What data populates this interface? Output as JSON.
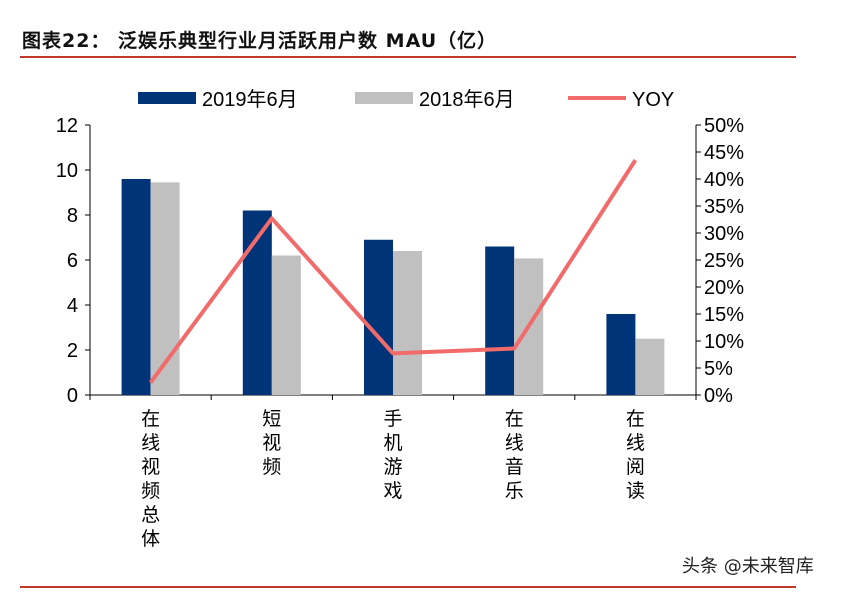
{
  "title": "图表22：   泛娱乐典型行业月活跃用户数 MAU（亿）",
  "watermark": "头条 @未来智库",
  "colors": {
    "s2019": "#003478",
    "s2018": "#c0c0c0",
    "yoy": "#f26b6b",
    "rule": "#c0392b"
  },
  "chart_data": {
    "type": "bar",
    "categories": [
      "在线视频总体",
      "短视频",
      "手机游戏",
      "在线音乐",
      "在线阅读"
    ],
    "series": [
      {
        "name": "2019年6月",
        "type": "bar",
        "axis": "left",
        "values": [
          9.6,
          8.2,
          6.9,
          6.6,
          3.6
        ]
      },
      {
        "name": "2018年6月",
        "type": "bar",
        "axis": "left",
        "values": [
          9.45,
          6.2,
          6.4,
          6.07,
          2.5
        ]
      },
      {
        "name": "YOY",
        "type": "line",
        "axis": "right",
        "values": [
          2.3,
          32.7,
          7.7,
          8.6,
          43.5
        ]
      }
    ],
    "ylim": [
      0,
      12
    ],
    "yticks": [
      "0",
      "2",
      "4",
      "6",
      "8",
      "10",
      "12"
    ],
    "y2lim": [
      0,
      50
    ],
    "y2ticks": [
      "0%",
      "5%",
      "10%",
      "15%",
      "20%",
      "25%",
      "30%",
      "35%",
      "40%",
      "45%",
      "50%"
    ],
    "legend": "top",
    "grid": false
  }
}
